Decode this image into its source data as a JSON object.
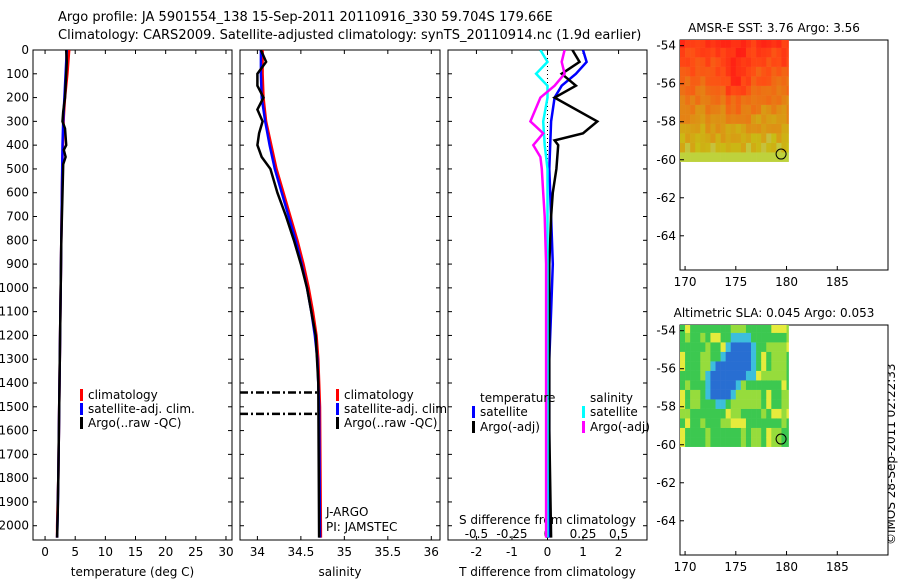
{
  "title_line1": "Argo profile: JA 5901554_138 15-Sep-2011 20110916_330 59.704S 179.66E",
  "title_line2": "Climatology: CARS2009. Satellite-adjusted climatology: synTS_20110914.nc (1.9d earlier)",
  "stamp": "©IMOS 28-Sep-2011 02:22:33",
  "colors": {
    "climatology": "#ff0000",
    "satellite": "#0000ff",
    "argo": "#000000",
    "sal_satellite": "#00ffff",
    "sal_argo": "#ff00ff"
  },
  "chart_data": [
    {
      "id": "temperature",
      "type": "line",
      "xlabel": "temperature (deg C)",
      "ylabel": "",
      "xlim": [
        -2,
        31
      ],
      "ylim": [
        2060,
        0
      ],
      "xticks": [
        0,
        5,
        10,
        15,
        20,
        25,
        30
      ],
      "xtick_labels": [
        "0",
        "5",
        "10",
        "15",
        "20",
        "25",
        "30"
      ],
      "yticks": [
        0,
        100,
        200,
        300,
        400,
        500,
        600,
        700,
        800,
        900,
        1000,
        1100,
        1200,
        1300,
        1400,
        1500,
        1600,
        1700,
        1800,
        1900,
        2000
      ],
      "ytick_labels": [
        "0",
        "100",
        "200",
        "300",
        "400",
        "500",
        "600",
        "700",
        "800",
        "900",
        "1000",
        "1100",
        "1200",
        "1300",
        "1400",
        "1500",
        "1600",
        "1700",
        "1800",
        "1900",
        "2000"
      ],
      "series": [
        {
          "name": "climatology",
          "color": "#ff0000",
          "x": [
            4.0,
            3.7,
            3.3,
            3.1,
            3.0,
            2.9,
            2.8,
            2.7,
            2.6,
            2.5,
            2.4,
            2.3,
            2.2,
            2.1,
            2.0,
            2.0
          ],
          "y": [
            0,
            100,
            200,
            280,
            350,
            450,
            600,
            800,
            1000,
            1200,
            1400,
            1600,
            1800,
            1900,
            2000,
            2050
          ]
        },
        {
          "name": "satellite-adj. clim.",
          "color": "#0000ff",
          "x": [
            3.6,
            3.4,
            3.2,
            3.0,
            2.9,
            2.8,
            2.7,
            2.6,
            2.5,
            2.4,
            2.3,
            2.2,
            2.1,
            2.0
          ],
          "y": [
            0,
            100,
            200,
            300,
            400,
            600,
            800,
            1000,
            1200,
            1400,
            1600,
            1800,
            1950,
            2050
          ]
        },
        {
          "name": "Argo(..raw -QC)",
          "color": "#000000",
          "x": [
            3.5,
            3.6,
            3.5,
            3.3,
            3.0,
            2.9,
            3.3,
            3.5,
            3.1,
            3.4,
            3.0,
            2.9,
            2.7,
            2.6,
            2.5,
            2.4,
            2.3,
            2.2,
            2.1,
            2.0
          ],
          "y": [
            0,
            50,
            100,
            200,
            260,
            300,
            330,
            400,
            420,
            450,
            480,
            600,
            800,
            1000,
            1200,
            1400,
            1600,
            1800,
            1950,
            2050
          ]
        }
      ],
      "legend": [
        "climatology",
        "satellite-adj. clim.",
        "Argo(..raw -QC)"
      ]
    },
    {
      "id": "salinity",
      "type": "line",
      "xlabel": "salinity",
      "xlim": [
        33.8,
        36.1
      ],
      "ylim": [
        2060,
        0
      ],
      "xticks": [
        34,
        34.5,
        35,
        35.5,
        36
      ],
      "xtick_labels": [
        "34",
        "34.5",
        "35",
        "35.5",
        "36"
      ],
      "series": [
        {
          "name": "climatology",
          "color": "#ff0000",
          "x": [
            34.06,
            34.06,
            34.07,
            34.1,
            34.16,
            34.22,
            34.3,
            34.38,
            34.46,
            34.53,
            34.59,
            34.64,
            34.68,
            34.7,
            34.72,
            34.73
          ],
          "y": [
            0,
            100,
            200,
            300,
            400,
            500,
            600,
            700,
            800,
            900,
            1000,
            1100,
            1200,
            1300,
            1500,
            2050
          ]
        },
        {
          "name": "satellite-adj. clim.",
          "color": "#0000ff",
          "x": [
            34.04,
            34.04,
            34.05,
            34.09,
            34.14,
            34.2,
            34.28,
            34.36,
            34.44,
            34.51,
            34.57,
            34.62,
            34.66,
            34.69,
            34.71,
            34.72
          ],
          "y": [
            0,
            100,
            200,
            300,
            400,
            500,
            600,
            700,
            800,
            900,
            1000,
            1100,
            1200,
            1300,
            1500,
            2050
          ]
        },
        {
          "name": "Argo(..raw -QC)",
          "color": "#000000",
          "x": [
            34.04,
            34.1,
            34.0,
            34.0,
            34.07,
            34.0,
            34.06,
            34.02,
            34.0,
            34.05,
            34.15,
            34.23,
            34.33,
            34.42,
            34.5,
            34.57,
            34.62,
            34.67,
            34.7,
            34.71
          ],
          "y": [
            0,
            50,
            100,
            150,
            200,
            250,
            300,
            350,
            400,
            450,
            500,
            600,
            700,
            800,
            900,
            1000,
            1100,
            1200,
            1400,
            2050
          ]
        }
      ],
      "legend": [
        "climatology",
        "satellite-adj. clim.",
        "Argo(..raw -QC)"
      ],
      "annotations": [
        "J-ARGO",
        "PI: JAMSTEC"
      ]
    },
    {
      "id": "difference",
      "type": "line",
      "xlabel": "T difference from climatology",
      "xlabel_top": "S difference from climatology",
      "xlim": [
        -2.8,
        2.8
      ],
      "ylim": [
        2060,
        0
      ],
      "xticks": [
        -2,
        -1,
        0,
        1,
        2
      ],
      "xtick_labels": [
        "-2",
        "-1",
        "0",
        "1",
        "2"
      ],
      "xticks_s": [
        -0.5,
        -0.25,
        0,
        0.25,
        0.5
      ],
      "xtick_labels_s": [
        "-0.5",
        "-0.25",
        "0",
        "0.25",
        "0.5"
      ],
      "series": [
        {
          "name": "temperature satellite",
          "color": "#0000ff",
          "x": [
            1.0,
            1.1,
            0.8,
            0.4,
            0.2,
            0.1,
            0.05,
            0.1,
            0.15,
            0.1,
            0.05,
            0.05,
            0.05,
            0.05,
            0.05,
            0.05
          ],
          "y": [
            0,
            50,
            100,
            150,
            200,
            300,
            500,
            700,
            900,
            1100,
            1300,
            1500,
            1700,
            1900,
            2000,
            2050
          ]
        },
        {
          "name": "temperature Argo(-adj)",
          "color": "#000000",
          "x": [
            0.7,
            0.9,
            0.4,
            0.8,
            0.2,
            1.4,
            1.0,
            0.2,
            0.3,
            0.25,
            0.15,
            0.1,
            0.05,
            0.05,
            0.05,
            0.1
          ],
          "y": [
            0,
            50,
            100,
            150,
            200,
            300,
            350,
            380,
            400,
            500,
            600,
            700,
            900,
            1200,
            1600,
            2050
          ]
        },
        {
          "name": "salinity satellite",
          "color": "#00ffff",
          "x": [
            -0.05,
            0.0,
            -0.08,
            0.0,
            0.0,
            -0.03,
            -0.02,
            0.0,
            0.0,
            0.0,
            0.0,
            0.0,
            0.0,
            0.0,
            0.0
          ],
          "y": [
            0,
            50,
            100,
            150,
            200,
            300,
            400,
            500,
            700,
            900,
            1100,
            1300,
            1500,
            1700,
            2050
          ]
        },
        {
          "name": "salinity Argo(-adj)",
          "color": "#ff00ff",
          "x": [
            0.12,
            0.1,
            0.12,
            0.05,
            -0.05,
            -0.12,
            -0.03,
            -0.1,
            -0.05,
            -0.04,
            -0.03,
            -0.02,
            -0.01,
            -0.01,
            -0.01,
            -0.01
          ],
          "y": [
            0,
            50,
            100,
            150,
            200,
            300,
            350,
            400,
            450,
            500,
            600,
            700,
            900,
            1100,
            1300,
            2050
          ]
        }
      ],
      "legend_groups": [
        {
          "heading": "temperature",
          "items": [
            "satellite",
            "Argo(-adj)"
          ]
        },
        {
          "heading": "salinity",
          "items": [
            "satellite",
            "Argo(-adj)"
          ]
        }
      ]
    },
    {
      "id": "sst-map",
      "type": "heatmap",
      "title": "AMSR-E SST: 3.76 Argo: 3.56",
      "xlim": [
        169.5,
        190
      ],
      "ylim": [
        -65.8,
        -53.7
      ],
      "xticks": [
        170,
        175,
        180,
        185
      ],
      "xtick_labels": [
        "170",
        "175",
        "180",
        "185"
      ],
      "yticks": [
        -54,
        -56,
        -58,
        -60,
        -62,
        -64
      ],
      "ytick_labels": [
        "-54",
        "-56",
        "-58",
        "-60",
        "-62",
        "-64"
      ],
      "data_extent": {
        "lon": [
          169.5,
          180.2
        ],
        "lat": [
          -60.1,
          -53.7
        ]
      },
      "marker": {
        "lon": 179.66,
        "lat": -59.7
      }
    },
    {
      "id": "sla-map",
      "type": "heatmap",
      "title": "Altimetric SLA: 0.045 Argo: 0.053",
      "xlim": [
        169.5,
        190
      ],
      "ylim": [
        -65.8,
        -53.7
      ],
      "xticks": [
        170,
        175,
        180,
        185
      ],
      "xtick_labels": [
        "170",
        "175",
        "180",
        "185"
      ],
      "yticks": [
        -54,
        -56,
        -58,
        -60,
        -62,
        -64
      ],
      "ytick_labels": [
        "-54",
        "-56",
        "-58",
        "-60",
        "-62",
        "-64"
      ],
      "data_extent": {
        "lon": [
          169.5,
          180.2
        ],
        "lat": [
          -60.1,
          -53.7
        ]
      },
      "marker": {
        "lon": 179.66,
        "lat": -59.7
      }
    }
  ]
}
